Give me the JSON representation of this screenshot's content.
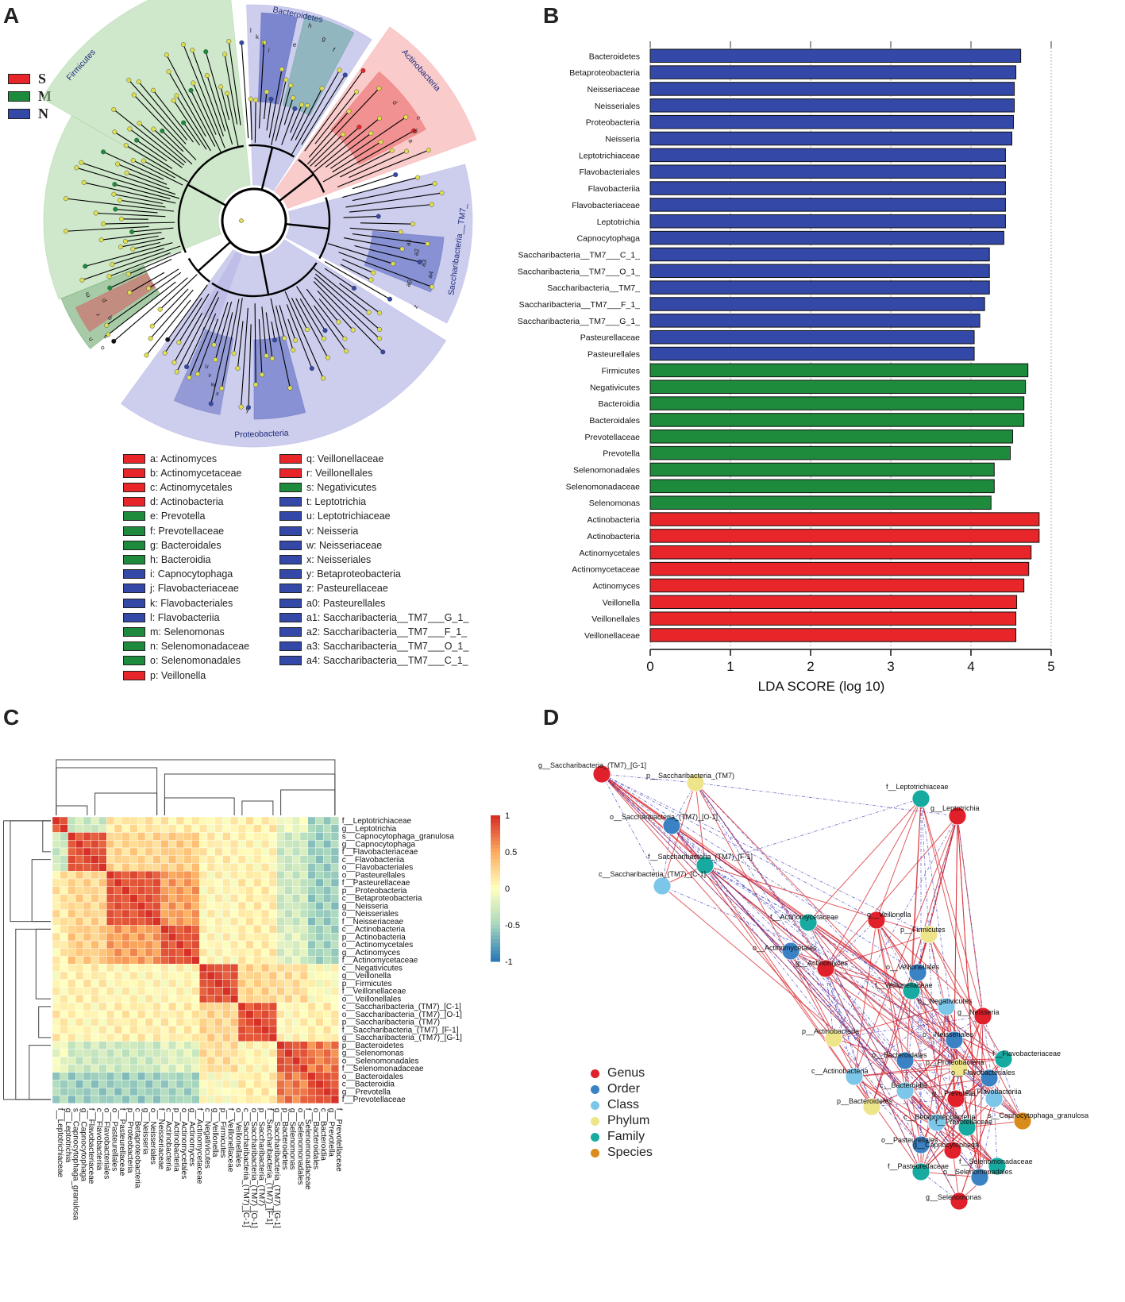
{
  "panels": {
    "a": "A",
    "b": "B",
    "c": "C",
    "d": "D"
  },
  "colors": {
    "S": "#e8262a",
    "M": "#1d8a3c",
    "N": "#3448a8"
  },
  "panelA": {
    "class_legend": [
      {
        "label": "S",
        "color": "#e8262a"
      },
      {
        "label": "M",
        "color": "#1d8a3c"
      },
      {
        "label": "N",
        "color": "#3448a8"
      }
    ],
    "sector_labels": [
      "Firmicutes",
      "Bacteroidetes",
      "Actinobacteria",
      "Saccharibacteria__TM7_",
      "Proteobacteria"
    ],
    "leaf_letters": [
      "l",
      "k",
      "j",
      "i",
      "h",
      "g",
      "f",
      "e",
      "d",
      "c",
      "b",
      "a",
      "a4",
      "a3",
      "a2",
      "a1",
      "a0",
      "z",
      "y",
      "x",
      "w",
      "v",
      "u",
      "t",
      "s",
      "r",
      "q",
      "p",
      "o",
      "n",
      "m"
    ],
    "legend": [
      {
        "text": "a: Actinomyces",
        "group": "S"
      },
      {
        "text": "b: Actinomycetaceae",
        "group": "S"
      },
      {
        "text": "c: Actinomycetales",
        "group": "S"
      },
      {
        "text": "d: Actinobacteria",
        "group": "S"
      },
      {
        "text": "e: Prevotella",
        "group": "M"
      },
      {
        "text": "f: Prevotellaceae",
        "group": "M"
      },
      {
        "text": "g: Bacteroidales",
        "group": "M"
      },
      {
        "text": "h: Bacteroidia",
        "group": "M"
      },
      {
        "text": "i: Capnocytophaga",
        "group": "N"
      },
      {
        "text": "j: Flavobacteriaceae",
        "group": "N"
      },
      {
        "text": "k: Flavobacteriales",
        "group": "N"
      },
      {
        "text": "l: Flavobacteriia",
        "group": "N"
      },
      {
        "text": "m: Selenomonas",
        "group": "M"
      },
      {
        "text": "n: Selenomonadaceae",
        "group": "M"
      },
      {
        "text": "o: Selenomonadales",
        "group": "M"
      },
      {
        "text": "p: Veillonella",
        "group": "S"
      },
      {
        "text": "q: Veillonellaceae",
        "group": "S"
      },
      {
        "text": "r: Veillonellales",
        "group": "S"
      },
      {
        "text": "s: Negativicutes",
        "group": "M"
      },
      {
        "text": "t: Leptotrichia",
        "group": "N"
      },
      {
        "text": "u: Leptotrichiaceae",
        "group": "N"
      },
      {
        "text": "v: Neisseria",
        "group": "N"
      },
      {
        "text": "w: Neisseriaceae",
        "group": "N"
      },
      {
        "text": "x: Neisseriales",
        "group": "N"
      },
      {
        "text": "y: Betaproteobacteria",
        "group": "N"
      },
      {
        "text": "z: Pasteurellaceae",
        "group": "N"
      },
      {
        "text": "a0: Pasteurellales",
        "group": "N"
      },
      {
        "text": "a1: Saccharibacteria__TM7___G_1_",
        "group": "N"
      },
      {
        "text": "a2: Saccharibacteria__TM7___F_1_",
        "group": "N"
      },
      {
        "text": "a3: Saccharibacteria__TM7___O_1_",
        "group": "N"
      },
      {
        "text": "a4: Saccharibacteria__TM7___C_1_",
        "group": "N"
      }
    ]
  },
  "chart_data": [
    {
      "type": "bar",
      "orientation": "horizontal",
      "title": "",
      "xlabel": "LDA SCORE (log 10)",
      "xlim": [
        0,
        5
      ],
      "xticks": [
        "0",
        "1",
        "2",
        "3",
        "4",
        "5"
      ],
      "categories": [
        "Bacteroidetes",
        "Betaproteobacteria",
        "Neisseriaceae",
        "Neisseriales",
        "Proteobacteria",
        "Neisseria",
        "Leptotrichiaceae",
        "Flavobacteriales",
        "Flavobacteriia",
        "Flavobacteriaceae",
        "Leptotrichia",
        "Capnocytophaga",
        "Saccharibacteria__TM7___C_1_",
        "Saccharibacteria__TM7___O_1_",
        "Saccharibacteria__TM7_",
        "Saccharibacteria__TM7___F_1_",
        "Saccharibacteria__TM7___G_1_",
        "Pasteurellaceae",
        "Pasteurellales",
        "Firmicutes",
        "Negativicutes",
        "Bacteroidia",
        "Bacteroidales",
        "Prevotellaceae",
        "Prevotella",
        "Selenomonadales",
        "Selenomonadaceae",
        "Selenomonas",
        "Actinobacteria",
        "Actinobacteria",
        "Actinomycetales",
        "Actinomycetaceae",
        "Actinomyces",
        "Veillonella",
        "Veillonellales",
        "Veillonellaceae"
      ],
      "values": [
        4.62,
        4.56,
        4.54,
        4.54,
        4.53,
        4.51,
        4.43,
        4.43,
        4.43,
        4.43,
        4.43,
        4.41,
        4.23,
        4.23,
        4.23,
        4.17,
        4.11,
        4.04,
        4.04,
        4.71,
        4.68,
        4.66,
        4.66,
        4.52,
        4.49,
        4.29,
        4.29,
        4.25,
        4.85,
        4.85,
        4.75,
        4.72,
        4.66,
        4.57,
        4.56,
        4.56
      ],
      "groups": [
        "N",
        "N",
        "N",
        "N",
        "N",
        "N",
        "N",
        "N",
        "N",
        "N",
        "N",
        "N",
        "N",
        "N",
        "N",
        "N",
        "N",
        "N",
        "N",
        "M",
        "M",
        "M",
        "M",
        "M",
        "M",
        "M",
        "M",
        "M",
        "S",
        "S",
        "S",
        "S",
        "S",
        "S",
        "S",
        "S"
      ]
    },
    {
      "type": "heatmap",
      "labels": [
        "f__Leptotrichiaceae",
        "g__Leptotrichia",
        "s__Capnocytophaga_granulosa",
        "g__Capnocytophaga",
        "f__Flavobacteriaceae",
        "c__Flavobacteriia",
        "o__Flavobacteriales",
        "o__Pasteurellales",
        "f__Pasteurellaceae",
        "p__Proteobacteria",
        "c__Betaproteobacteria",
        "g__Neisseria",
        "o__Neisseriales",
        "f__Neisseriaceae",
        "c__Actinobacteria",
        "p__Actinobacteria",
        "o__Actinomycetales",
        "g__Actinomyces",
        "f__Actinomycetaceae",
        "c__Negativicutes",
        "g__Veillonella",
        "p__Firmicutes",
        "f__Veillonellaceae",
        "o__Veillonellales",
        "c__Saccharibacteria_(TM7)_[C-1]",
        "o__Saccharibacteria_(TM7)_[O-1]",
        "p__Saccharibacteria_(TM7)",
        "f__Saccharibacteria_(TM7)_[F-1]",
        "g__Saccharibacteria_(TM7)_[G-1]",
        "p__Bacteroidetes",
        "g__Selenomonas",
        "o__Selenomonadales",
        "f__Selenomonadaceae",
        "o__Bacteroidales",
        "c__Bacteroidia",
        "g__Prevotella",
        "f__Prevotellaceae"
      ],
      "colorbar_ticks": [
        "1",
        "0.5",
        "0",
        "-0.5",
        "-1"
      ],
      "cluster_blocks": [
        [
          0,
          1
        ],
        [
          2,
          6
        ],
        [
          7,
          13
        ],
        [
          14,
          18
        ],
        [
          19,
          23
        ],
        [
          24,
          28
        ],
        [
          29,
          32
        ],
        [
          33,
          36
        ]
      ]
    },
    {
      "type": "network",
      "nodes": [
        {
          "label": "g__Saccharibacteria_(TM7)_[G-1]",
          "kind": "Genus"
        },
        {
          "label": "p__Saccharibacteria_(TM7)",
          "kind": "Phylum"
        },
        {
          "label": "o__Saccharibacteria_(TM7)_[O-1]",
          "kind": "Order"
        },
        {
          "label": "f__Saccharibacteria_(TM7)_[F-1]",
          "kind": "Family"
        },
        {
          "label": "c__Saccharibacteria_(TM7)_[C-1]",
          "kind": "Class"
        },
        {
          "label": "f__Leptotrichiaceae",
          "kind": "Family"
        },
        {
          "label": "g__Leptotrichia",
          "kind": "Genus"
        },
        {
          "label": "f__Actinomycetaceae",
          "kind": "Family"
        },
        {
          "label": "g__Veillonella",
          "kind": "Genus"
        },
        {
          "label": "p__Firmicutes",
          "kind": "Phylum"
        },
        {
          "label": "o__Actinomycetales",
          "kind": "Order"
        },
        {
          "label": "g__Actinomyces",
          "kind": "Genus"
        },
        {
          "label": "o__Veillonellales",
          "kind": "Order"
        },
        {
          "label": "f__Veillonellaceae",
          "kind": "Family"
        },
        {
          "label": "c__Negativicutes",
          "kind": "Class"
        },
        {
          "label": "g__Neisseria",
          "kind": "Genus"
        },
        {
          "label": "p__Actinobacteria",
          "kind": "Phylum"
        },
        {
          "label": "o__Neisseriales",
          "kind": "Order"
        },
        {
          "label": "f__Flavobacteriaceae",
          "kind": "Family"
        },
        {
          "label": "o__Bacteroidales",
          "kind": "Order"
        },
        {
          "label": "p__Proteobacteria",
          "kind": "Phylum"
        },
        {
          "label": "c__Actinobacteria",
          "kind": "Class"
        },
        {
          "label": "o__Flavobacteriales",
          "kind": "Order"
        },
        {
          "label": "c__Bacteroidia",
          "kind": "Class"
        },
        {
          "label": "g__Prevotella",
          "kind": "Genus"
        },
        {
          "label": "c__Flavobacteriia",
          "kind": "Class"
        },
        {
          "label": "p__Bacteroidetes",
          "kind": "Phylum"
        },
        {
          "label": "s__Capnocytophaga_granulosa",
          "kind": "Species"
        },
        {
          "label": "c__Betaproteobacteria",
          "kind": "Class"
        },
        {
          "label": "f__Prevotellaceae",
          "kind": "Family"
        },
        {
          "label": "o__Pasteurellales",
          "kind": "Order"
        },
        {
          "label": "g__Capnocytophaga",
          "kind": "Genus"
        },
        {
          "label": "f__Selenomonadaceae",
          "kind": "Family"
        },
        {
          "label": "f__Pasteurellaceae",
          "kind": "Family"
        },
        {
          "label": "o__Selenomonadales",
          "kind": "Order"
        },
        {
          "label": "g__Selenomonas",
          "kind": "Genus"
        }
      ],
      "legend": [
        {
          "label": "Genus",
          "color": "#e0202a"
        },
        {
          "label": "Order",
          "color": "#3b82c4"
        },
        {
          "label": "Class",
          "color": "#7cc6ea"
        },
        {
          "label": "Phylum",
          "color": "#eee58a"
        },
        {
          "label": "Family",
          "color": "#17aaa0"
        },
        {
          "label": "Species",
          "color": "#d98c1c"
        }
      ]
    }
  ]
}
